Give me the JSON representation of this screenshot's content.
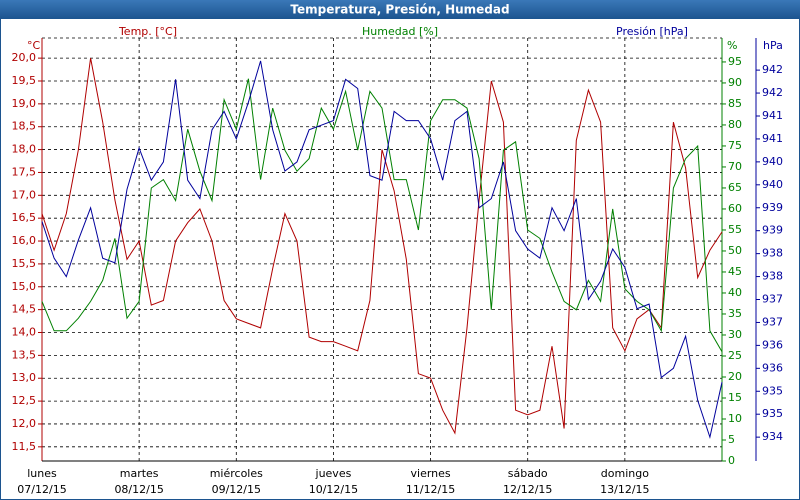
{
  "chart_data": {
    "type": "line",
    "title": "Temperatura, Presión, Humedad",
    "ylabel": "°C",
    "y2label": "%",
    "y3label": "hPa",
    "xlim": [
      0,
      7
    ],
    "xticks": [
      {
        "value": 0,
        "label": [
          "lunes",
          "07/12/15"
        ]
      },
      {
        "value": 1,
        "label": [
          "martes",
          "08/12/15"
        ]
      },
      {
        "value": 2,
        "label": [
          "miércoles",
          "09/12/15"
        ]
      },
      {
        "value": 3,
        "label": [
          "jueves",
          "10/12/15"
        ]
      },
      {
        "value": 4,
        "label": [
          "viernes",
          "11/12/15"
        ]
      },
      {
        "value": 5,
        "label": [
          "sábado",
          "12/12/15"
        ]
      },
      {
        "value": 6,
        "label": [
          "domingo",
          "13/12/15"
        ]
      }
    ],
    "ylim": [
      11.19,
      20.44
    ],
    "yticks": [
      {
        "value": 11.5,
        "label": "11,5"
      },
      {
        "value": 12,
        "label": "12,0"
      },
      {
        "value": 12.5,
        "label": "12,5"
      },
      {
        "value": 13,
        "label": "13,0"
      },
      {
        "value": 13.5,
        "label": "13,5"
      },
      {
        "value": 14,
        "label": "14,0"
      },
      {
        "value": 14.5,
        "label": "14,5"
      },
      {
        "value": 15,
        "label": "15,0"
      },
      {
        "value": 15.5,
        "label": "15,5"
      },
      {
        "value": 16,
        "label": "16,0"
      },
      {
        "value": 16.5,
        "label": "16,5"
      },
      {
        "value": 17,
        "label": "17,0"
      },
      {
        "value": 17.5,
        "label": "17,5"
      },
      {
        "value": 18,
        "label": "18,0"
      },
      {
        "value": 18.5,
        "label": "18,5"
      },
      {
        "value": 19,
        "label": "19,0"
      },
      {
        "value": 19.5,
        "label": "19,5"
      },
      {
        "value": 20,
        "label": "20,0"
      }
    ],
    "y2lim": [
      0,
      100.7
    ],
    "y2ticks": [
      0,
      5,
      10,
      15,
      20,
      25,
      30,
      35,
      40,
      45,
      50,
      55,
      60,
      65,
      70,
      75,
      80,
      85,
      90,
      95
    ],
    "y3lim": [
      933.68,
      942.9
    ],
    "y3ticks": [
      {
        "value": 942.2,
        "label": "942"
      },
      {
        "value": 941.7,
        "label": "942"
      },
      {
        "value": 941.2,
        "label": "941"
      },
      {
        "value": 940.7,
        "label": "941"
      },
      {
        "value": 940.2,
        "label": "940"
      },
      {
        "value": 939.7,
        "label": "940"
      },
      {
        "value": 939.2,
        "label": "939"
      },
      {
        "value": 938.7,
        "label": "939"
      },
      {
        "value": 938.2,
        "label": "938"
      },
      {
        "value": 937.7,
        "label": "938"
      },
      {
        "value": 937.2,
        "label": "937"
      },
      {
        "value": 936.7,
        "label": "937"
      },
      {
        "value": 936.2,
        "label": "936"
      },
      {
        "value": 935.7,
        "label": "936"
      },
      {
        "value": 935.2,
        "label": "935"
      },
      {
        "value": 934.7,
        "label": "935"
      },
      {
        "value": 934.2,
        "label": "934"
      }
    ],
    "grid": true,
    "x": [
      0,
      0.125,
      0.25,
      0.375,
      0.5,
      0.625,
      0.75,
      0.875,
      1,
      1.125,
      1.25,
      1.375,
      1.5,
      1.625,
      1.75,
      1.875,
      2,
      2.125,
      2.25,
      2.375,
      2.5,
      2.625,
      2.75,
      2.875,
      3,
      3.125,
      3.25,
      3.375,
      3.5,
      3.625,
      3.75,
      3.875,
      4,
      4.125,
      4.25,
      4.375,
      4.5,
      4.625,
      4.75,
      4.875,
      5,
      5.125,
      5.25,
      5.375,
      5.5,
      5.625,
      5.75,
      5.875,
      6,
      6.125,
      6.25,
      6.375,
      6.5,
      6.625,
      6.75,
      6.875,
      7
    ],
    "series": [
      {
        "name": "Temp. [°C]",
        "color": "#b00000",
        "axis": "y",
        "values": [
          16.6,
          15.8,
          16.6,
          18.0,
          20.0,
          18.6,
          16.9,
          15.6,
          16.0,
          14.6,
          14.7,
          16.0,
          16.4,
          16.7,
          16.0,
          14.7,
          14.3,
          14.2,
          14.1,
          15.4,
          16.6,
          16.0,
          13.9,
          13.8,
          13.8,
          13.7,
          13.6,
          14.7,
          18.0,
          17.1,
          15.6,
          13.1,
          13.0,
          12.3,
          11.8,
          14.1,
          16.9,
          19.5,
          18.6,
          12.3,
          12.2,
          12.3,
          13.7,
          11.9,
          18.2,
          19.3,
          18.6,
          14.1,
          13.6,
          14.3,
          14.5,
          14.1,
          18.6,
          17.6,
          15.2,
          15.8,
          16.2
        ]
      },
      {
        "name": "Humedad [%]",
        "color": "#008000",
        "axis": "y2",
        "values": [
          38,
          31,
          31,
          34,
          38,
          43,
          53,
          34,
          38,
          65,
          67,
          62,
          79,
          69,
          62,
          86,
          79,
          91,
          67,
          84,
          74,
          69,
          72,
          84,
          79,
          88,
          74,
          88,
          84,
          67,
          67,
          55,
          81,
          86,
          86,
          84,
          72,
          36,
          74,
          76,
          55,
          53,
          45,
          38,
          36,
          43,
          38,
          60,
          41,
          38,
          36,
          31,
          65,
          72,
          75,
          31,
          26
        ]
      },
      {
        "name": "Presión [hPa]",
        "color": "#00009c",
        "axis": "y3",
        "values": [
          938.9,
          938.1,
          937.7,
          938.5,
          939.2,
          938.1,
          938.0,
          939.6,
          940.5,
          939.8,
          940.2,
          942.0,
          939.8,
          939.4,
          940.9,
          941.3,
          940.7,
          941.5,
          942.4,
          940.9,
          940.0,
          940.2,
          940.9,
          941.0,
          941.1,
          942.0,
          941.8,
          939.9,
          939.8,
          941.3,
          941.1,
          941.1,
          940.7,
          939.8,
          941.1,
          941.3,
          939.2,
          939.4,
          940.2,
          938.7,
          938.3,
          938.1,
          939.2,
          938.7,
          939.4,
          937.2,
          937.6,
          938.3,
          937.9,
          937.0,
          937.1,
          935.5,
          935.7,
          936.4,
          935.0,
          934.2,
          935.4
        ]
      }
    ]
  }
}
